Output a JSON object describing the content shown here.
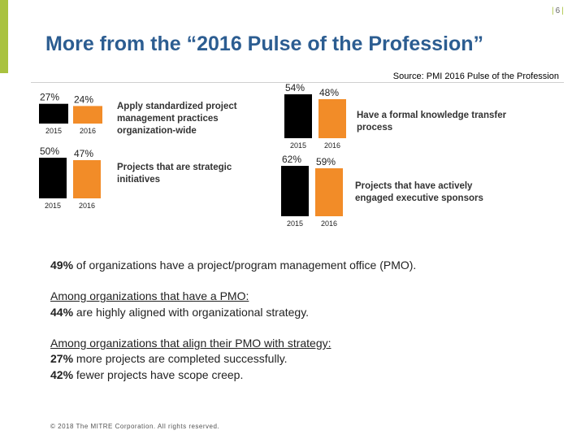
{
  "header": {
    "page_number": "6",
    "title": "More from the “2016 Pulse of the Profession”",
    "source": "Source: PMI 2016 Pulse of the Profession"
  },
  "chart_data": [
    {
      "type": "bar",
      "categories": [
        "2015",
        "2016"
      ],
      "values": [
        27,
        24
      ],
      "value_labels": [
        "27%",
        "24%"
      ],
      "description": "Apply standardized project management practices organization-wide",
      "colors": [
        "#000000",
        "#f28c28"
      ]
    },
    {
      "type": "bar",
      "categories": [
        "2015",
        "2016"
      ],
      "values": [
        50,
        47
      ],
      "value_labels": [
        "50%",
        "47%"
      ],
      "description": "Projects that are strategic initiatives",
      "colors": [
        "#000000",
        "#f28c28"
      ]
    },
    {
      "type": "bar",
      "categories": [
        "2015",
        "2016"
      ],
      "values": [
        54,
        48
      ],
      "value_labels": [
        "54%",
        "48%"
      ],
      "description": "Have a formal knowledge transfer process",
      "colors": [
        "#000000",
        "#f28c28"
      ]
    },
    {
      "type": "bar",
      "categories": [
        "2015",
        "2016"
      ],
      "values": [
        62,
        59
      ],
      "value_labels": [
        "62%",
        "59%"
      ],
      "description": "Projects that have actively engaged executive sponsors",
      "colors": [
        "#000000",
        "#f28c28"
      ]
    }
  ],
  "stats": {
    "pmo": {
      "pct": "49%",
      "text": " of organizations have a project/program management office (PMO)."
    },
    "pmo_heading": "Among organizations that have a PMO:",
    "aligned": {
      "pct": "44%",
      "text": " are highly aligned with organizational strategy."
    },
    "strategy_heading": "Among organizations that align their PMO with strategy:",
    "completed": {
      "pct": "27%",
      "text": " more projects are completed successfully."
    },
    "scope": {
      "pct": "42%",
      "text": " fewer projects have scope creep."
    }
  },
  "footer": "© 2018 The MITRE Corporation. All rights reserved."
}
